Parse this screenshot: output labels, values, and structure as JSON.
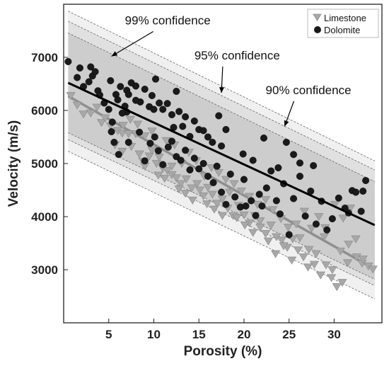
{
  "chart_data": {
    "type": "scatter",
    "xlabel": "Porosity (%)",
    "ylabel": "Velocity (m/s)",
    "xlim": [
      0,
      35.3
    ],
    "ylim": [
      2000,
      8000
    ],
    "xticks": [
      5,
      10,
      15,
      20,
      25,
      30
    ],
    "yticks": [
      3000,
      4000,
      5000,
      6000,
      7000
    ],
    "legend": {
      "placement": "top-right",
      "entries": [
        "Limestone",
        "Dolomite"
      ]
    },
    "colors": {
      "limestone": "#a8a8a8",
      "dolomite": "#1a1a1a",
      "band90": "#cdcdcd",
      "band95": "#e0e0e0",
      "band99": "#f0f0f0"
    },
    "series": [
      {
        "name": "Dolomite",
        "marker": "circle",
        "points": [
          [
            0.5,
            6920
          ],
          [
            1.5,
            6620
          ],
          [
            1.8,
            6800
          ],
          [
            2.2,
            6450
          ],
          [
            2.8,
            6540
          ],
          [
            3.0,
            6820
          ],
          [
            3.2,
            6650
          ],
          [
            3.5,
            6730
          ],
          [
            3.8,
            6370
          ],
          [
            4.0,
            6290
          ],
          [
            4.5,
            6140
          ],
          [
            5.0,
            6020
          ],
          [
            5.2,
            6560
          ],
          [
            5.4,
            5780
          ],
          [
            5.8,
            6300
          ],
          [
            6.0,
            6200
          ],
          [
            6.3,
            6450
          ],
          [
            6.8,
            6080
          ],
          [
            7.0,
            6380
          ],
          [
            7.2,
            6300
          ],
          [
            7.5,
            6520
          ],
          [
            8.0,
            6460
          ],
          [
            8.5,
            6160
          ],
          [
            9.0,
            6400
          ],
          [
            9.5,
            6070
          ],
          [
            9.8,
            6280
          ],
          [
            10.0,
            6020
          ],
          [
            10.2,
            6590
          ],
          [
            10.6,
            6140
          ],
          [
            11.0,
            6020
          ],
          [
            11.5,
            6130
          ],
          [
            12.0,
            5920
          ],
          [
            12.2,
            5680
          ],
          [
            12.5,
            6360
          ],
          [
            12.8,
            5980
          ],
          [
            13.2,
            5700
          ],
          [
            13.5,
            5880
          ],
          [
            14.0,
            5510
          ],
          [
            14.5,
            5800
          ],
          [
            15.0,
            5640
          ],
          [
            15.5,
            5620
          ],
          [
            16.0,
            5500
          ],
          [
            16.5,
            5400
          ],
          [
            17.2,
            5900
          ],
          [
            17.5,
            5330
          ],
          [
            18.0,
            5640
          ],
          [
            5.3,
            5600
          ],
          [
            5.6,
            5400
          ],
          [
            6.1,
            5170
          ],
          [
            7.2,
            5400
          ],
          [
            8.4,
            5590
          ],
          [
            9.0,
            5050
          ],
          [
            9.6,
            5380
          ],
          [
            10.1,
            5500
          ],
          [
            10.5,
            5240
          ],
          [
            11.0,
            4980
          ],
          [
            11.6,
            5310
          ],
          [
            12.0,
            5420
          ],
          [
            12.5,
            5130
          ],
          [
            13.0,
            5060
          ],
          [
            13.5,
            5250
          ],
          [
            14.0,
            4880
          ],
          [
            14.5,
            5100
          ],
          [
            15.0,
            4900
          ],
          [
            15.5,
            5000
          ],
          [
            16.0,
            4760
          ],
          [
            16.6,
            4640
          ],
          [
            17.0,
            4950
          ],
          [
            17.5,
            4460
          ],
          [
            18.0,
            4230
          ],
          [
            18.5,
            4800
          ],
          [
            19.0,
            4370
          ],
          [
            19.6,
            4180
          ],
          [
            20.0,
            4700
          ],
          [
            20.2,
            4200
          ],
          [
            20.8,
            4300
          ],
          [
            21.3,
            4020
          ],
          [
            21.7,
            4420
          ],
          [
            22.0,
            4200
          ],
          [
            22.5,
            4540
          ],
          [
            23.0,
            4860
          ],
          [
            23.6,
            4300
          ],
          [
            24.0,
            4050
          ],
          [
            24.4,
            4620
          ],
          [
            25.0,
            3660
          ],
          [
            25.5,
            4340
          ],
          [
            26.2,
            4760
          ],
          [
            26.8,
            4010
          ],
          [
            27.4,
            4480
          ],
          [
            28.0,
            3860
          ],
          [
            28.6,
            4290
          ],
          [
            29.2,
            3750
          ],
          [
            29.8,
            3960
          ],
          [
            30.5,
            4350
          ],
          [
            31.2,
            4160
          ],
          [
            31.6,
            4070
          ],
          [
            32.0,
            4490
          ],
          [
            32.4,
            4460
          ],
          [
            33.0,
            4100
          ],
          [
            33.2,
            4480
          ],
          [
            33.5,
            4680
          ],
          [
            19.9,
            5180
          ],
          [
            21.0,
            5060
          ],
          [
            22.2,
            5480
          ],
          [
            23.8,
            4920
          ],
          [
            24.7,
            5400
          ],
          [
            25.5,
            5170
          ],
          [
            26.2,
            5010
          ],
          [
            27.7,
            4960
          ],
          [
            8.0,
            6190
          ],
          [
            7.0,
            5970
          ],
          [
            6.5,
            5950
          ]
        ]
      },
      {
        "name": "Limestone",
        "marker": "triangle-down",
        "points": [
          [
            0.8,
            6280
          ],
          [
            1.5,
            6100
          ],
          [
            2.2,
            5930
          ],
          [
            3.0,
            5950
          ],
          [
            3.7,
            6060
          ],
          [
            4.2,
            5770
          ],
          [
            4.6,
            5860
          ],
          [
            5.2,
            5710
          ],
          [
            6.0,
            5620
          ],
          [
            6.5,
            5570
          ],
          [
            7.2,
            5560
          ],
          [
            8.0,
            5560
          ],
          [
            8.8,
            5040
          ],
          [
            9.5,
            5140
          ],
          [
            10.3,
            5000
          ],
          [
            11.0,
            4910
          ],
          [
            11.5,
            4870
          ],
          [
            12.0,
            4790
          ],
          [
            12.5,
            4730
          ],
          [
            13.0,
            4620
          ],
          [
            13.6,
            4710
          ],
          [
            14.2,
            4540
          ],
          [
            14.8,
            4620
          ],
          [
            15.5,
            4390
          ],
          [
            16.0,
            4550
          ],
          [
            16.5,
            4420
          ],
          [
            17.0,
            4250
          ],
          [
            17.6,
            4330
          ],
          [
            18.2,
            4160
          ],
          [
            18.8,
            4020
          ],
          [
            19.4,
            4210
          ],
          [
            20.0,
            4030
          ],
          [
            20.6,
            3880
          ],
          [
            21.2,
            4020
          ],
          [
            21.8,
            3800
          ],
          [
            22.4,
            3680
          ],
          [
            23.0,
            3840
          ],
          [
            23.6,
            3620
          ],
          [
            24.2,
            3560
          ],
          [
            24.8,
            3420
          ],
          [
            25.4,
            3580
          ],
          [
            26.0,
            3370
          ],
          [
            26.6,
            3240
          ],
          [
            27.2,
            3380
          ],
          [
            27.8,
            3100
          ],
          [
            28.5,
            2900
          ],
          [
            29.1,
            3090
          ],
          [
            29.7,
            2850
          ],
          [
            30.3,
            2680
          ],
          [
            30.9,
            2760
          ],
          [
            31.5,
            3130
          ],
          [
            32.5,
            3240
          ],
          [
            33.1,
            3120
          ],
          [
            33.8,
            3070
          ],
          [
            34.3,
            3010
          ],
          [
            5.7,
            5350
          ],
          [
            6.5,
            5230
          ],
          [
            7.5,
            5320
          ],
          [
            8.4,
            5180
          ],
          [
            9.0,
            4950
          ],
          [
            9.8,
            5250
          ],
          [
            10.5,
            4780
          ],
          [
            11.2,
            4720
          ],
          [
            12.0,
            4950
          ],
          [
            12.8,
            4520
          ],
          [
            13.5,
            4440
          ],
          [
            14.3,
            4310
          ],
          [
            15.1,
            4500
          ],
          [
            15.9,
            4240
          ],
          [
            16.7,
            4140
          ],
          [
            17.6,
            4020
          ],
          [
            18.4,
            4460
          ],
          [
            19.2,
            3980
          ],
          [
            20.1,
            3840
          ],
          [
            21.0,
            3700
          ],
          [
            21.8,
            3920
          ],
          [
            22.7,
            3540
          ],
          [
            23.5,
            3300
          ],
          [
            24.4,
            3450
          ],
          [
            25.3,
            3180
          ],
          [
            26.2,
            3600
          ],
          [
            27.1,
            3050
          ],
          [
            28.0,
            3300
          ],
          [
            28.9,
            3620
          ],
          [
            29.8,
            3000
          ],
          [
            30.7,
            3350
          ],
          [
            31.6,
            3480
          ],
          [
            32.4,
            3580
          ],
          [
            33.2,
            3200
          ],
          [
            30.1,
            4230
          ],
          [
            31.0,
            3970
          ],
          [
            31.8,
            4160
          ],
          [
            29.0,
            3790
          ],
          [
            28.3,
            4000
          ],
          [
            27.5,
            3780
          ],
          [
            26.7,
            4100
          ],
          [
            25.8,
            3860
          ],
          [
            24.9,
            3800
          ],
          [
            24.1,
            3960
          ],
          [
            23.2,
            4130
          ],
          [
            22.4,
            4320
          ],
          [
            21.5,
            4230
          ],
          [
            20.6,
            4380
          ],
          [
            19.7,
            4480
          ],
          [
            18.9,
            4620
          ],
          [
            18.0,
            4700
          ],
          [
            17.2,
            4830
          ],
          [
            16.4,
            4920
          ],
          [
            15.6,
            4760
          ],
          [
            14.7,
            5050
          ],
          [
            13.9,
            5210
          ],
          [
            13.1,
            5000
          ],
          [
            12.3,
            5350
          ],
          [
            11.4,
            5430
          ],
          [
            10.6,
            5120
          ],
          [
            9.8,
            5610
          ],
          [
            9.0,
            5520
          ],
          [
            8.2,
            5740
          ],
          [
            7.4,
            5830
          ],
          [
            6.6,
            5720
          ]
        ]
      }
    ],
    "trend_lines": [
      {
        "name": "Dolomite",
        "x": [
          0.5,
          34.5
        ],
        "y": [
          6520,
          3840
        ]
      },
      {
        "name": "Limestone",
        "x": [
          0.5,
          34.5
        ],
        "y": [
          6270,
          3010
        ]
      }
    ],
    "confidence_bands": [
      {
        "label": "99% confidence",
        "lower": [
          [
            0.5,
            5230
          ],
          [
            34.5,
            2450
          ]
        ],
        "upper": [
          [
            0.5,
            7870
          ],
          [
            34.5,
            5050
          ]
        ]
      },
      {
        "label": "95% confidence",
        "lower": [
          [
            0.5,
            5450
          ],
          [
            34.5,
            2700
          ]
        ],
        "upper": [
          [
            0.5,
            7680
          ],
          [
            34.5,
            4880
          ]
        ]
      },
      {
        "label": "90% confidence",
        "lower": [
          [
            0.5,
            5580
          ],
          [
            34.5,
            2820
          ]
        ],
        "upper": [
          [
            0.5,
            7460
          ],
          [
            34.5,
            4660
          ]
        ]
      }
    ],
    "annotations": [
      {
        "text": "99% confidence",
        "x": 6.8,
        "y": 7620,
        "arrow_to": [
          5.3,
          7020
        ]
      },
      {
        "text": "95% confidence",
        "x": 14.5,
        "y": 6960,
        "arrow_to": [
          17.5,
          6330
        ]
      },
      {
        "text": "90% confidence",
        "x": 22.4,
        "y": 6310,
        "arrow_to": [
          24.5,
          5700
        ]
      }
    ]
  }
}
